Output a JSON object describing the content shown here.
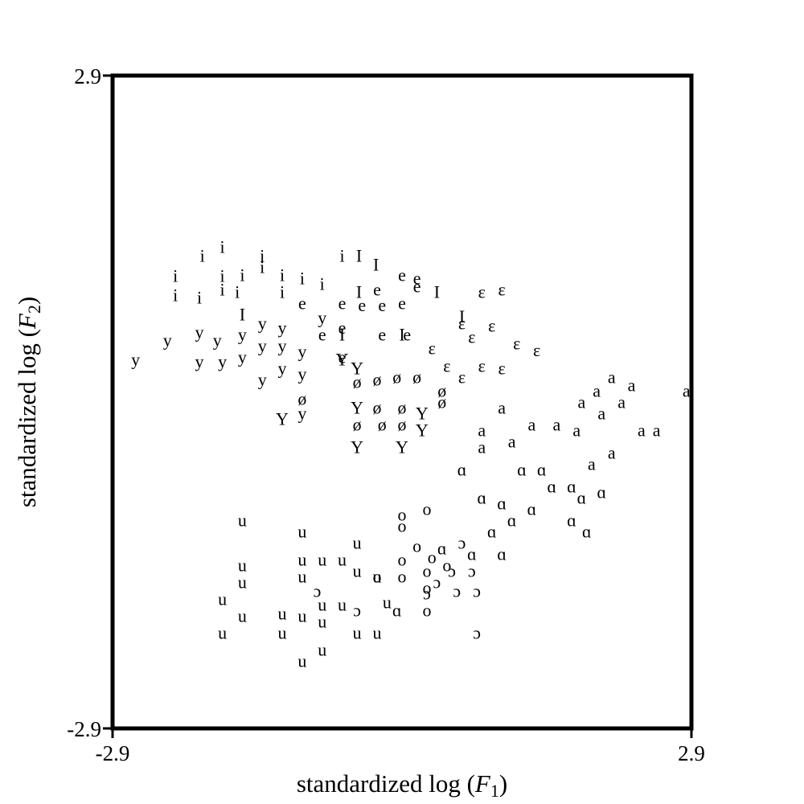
{
  "chart_data": {
    "type": "scatter",
    "xlabel_prefix": "standardized log (",
    "xlabel_var": "F",
    "xlabel_sub": "1",
    "xlabel_suffix": ")",
    "ylabel_prefix": "standardized log (",
    "ylabel_var": "F",
    "ylabel_sub": "2",
    "ylabel_suffix": ")",
    "xlim": [
      -2.9,
      2.9
    ],
    "ylim": [
      -2.9,
      2.9
    ],
    "x_tick_labels": [
      "-2.9",
      "2.9"
    ],
    "y_tick_labels": [
      "2.9",
      "-2.9"
    ],
    "grid": false,
    "points": [
      {
        "label": "i",
        "x": -2.0,
        "y": 1.3
      },
      {
        "label": "i",
        "x": -1.8,
        "y": 1.38
      },
      {
        "label": "i",
        "x": -2.27,
        "y": 1.12
      },
      {
        "label": "i",
        "x": -2.27,
        "y": 0.95
      },
      {
        "label": "i",
        "x": -2.03,
        "y": 0.93
      },
      {
        "label": "i",
        "x": -1.8,
        "y": 1.12
      },
      {
        "label": "i",
        "x": -1.8,
        "y": 1.0
      },
      {
        "label": "i",
        "x": -1.6,
        "y": 1.13
      },
      {
        "label": "i",
        "x": -1.65,
        "y": 0.98
      },
      {
        "label": "i",
        "x": -1.4,
        "y": 1.3
      },
      {
        "label": "i",
        "x": -1.4,
        "y": 1.2
      },
      {
        "label": "i",
        "x": -1.2,
        "y": 1.13
      },
      {
        "label": "i",
        "x": -1.0,
        "y": 1.1
      },
      {
        "label": "i",
        "x": -1.2,
        "y": 0.98
      },
      {
        "label": "i",
        "x": -0.6,
        "y": 1.3
      },
      {
        "label": "i",
        "x": -0.8,
        "y": 1.05
      },
      {
        "label": "I",
        "x": -0.43,
        "y": 1.3
      },
      {
        "label": "I",
        "x": -0.26,
        "y": 1.22
      },
      {
        "label": "I",
        "x": -1.6,
        "y": 0.78
      },
      {
        "label": "I",
        "x": -0.43,
        "y": 0.98
      },
      {
        "label": "I",
        "x": 0.35,
        "y": 0.98
      },
      {
        "label": "I",
        "x": 0.6,
        "y": 0.76
      },
      {
        "label": "I",
        "x": -0.6,
        "y": 0.6
      },
      {
        "label": "I",
        "x": 0.0,
        "y": 0.6
      },
      {
        "label": "e",
        "x": 0.0,
        "y": 1.13
      },
      {
        "label": "e",
        "x": 0.15,
        "y": 1.1
      },
      {
        "label": "e",
        "x": 0.15,
        "y": 1.03
      },
      {
        "label": "e",
        "x": -0.25,
        "y": 1.0
      },
      {
        "label": "e",
        "x": -1.0,
        "y": 0.88
      },
      {
        "label": "e",
        "x": -0.6,
        "y": 0.88
      },
      {
        "label": "e",
        "x": -0.4,
        "y": 0.86
      },
      {
        "label": "e",
        "x": -0.2,
        "y": 0.86
      },
      {
        "label": "e",
        "x": 0.0,
        "y": 0.88
      },
      {
        "label": "e",
        "x": -0.6,
        "y": 0.66
      },
      {
        "label": "e",
        "x": -0.8,
        "y": 0.6
      },
      {
        "label": "e",
        "x": -0.2,
        "y": 0.6
      },
      {
        "label": "e",
        "x": 0.05,
        "y": 0.6
      },
      {
        "label": "e",
        "x": -0.6,
        "y": 0.4
      },
      {
        "label": "ɛ",
        "x": 0.8,
        "y": 0.98
      },
      {
        "label": "ɛ",
        "x": 1.0,
        "y": 1.0
      },
      {
        "label": "ɛ",
        "x": 0.6,
        "y": 0.7
      },
      {
        "label": "ɛ",
        "x": 0.9,
        "y": 0.68
      },
      {
        "label": "ɛ",
        "x": 1.15,
        "y": 0.52
      },
      {
        "label": "ɛ",
        "x": 0.7,
        "y": 0.58
      },
      {
        "label": "ɛ",
        "x": 1.35,
        "y": 0.46
      },
      {
        "label": "ɛ",
        "x": 0.8,
        "y": 0.32
      },
      {
        "label": "ɛ",
        "x": 1.0,
        "y": 0.3
      },
      {
        "label": "ɛ",
        "x": 0.45,
        "y": 0.32
      },
      {
        "label": "ɛ",
        "x": 0.6,
        "y": 0.22
      },
      {
        "label": "ɛ",
        "x": 0.3,
        "y": 0.48
      },
      {
        "label": "y",
        "x": -2.67,
        "y": 0.38
      },
      {
        "label": "y",
        "x": -2.35,
        "y": 0.55
      },
      {
        "label": "y",
        "x": -2.03,
        "y": 0.62
      },
      {
        "label": "y",
        "x": -1.85,
        "y": 0.55
      },
      {
        "label": "y",
        "x": -2.03,
        "y": 0.36
      },
      {
        "label": "y",
        "x": -1.8,
        "y": 0.36
      },
      {
        "label": "y",
        "x": -1.6,
        "y": 0.4
      },
      {
        "label": "y",
        "x": -1.6,
        "y": 0.6
      },
      {
        "label": "y",
        "x": -1.4,
        "y": 0.7
      },
      {
        "label": "y",
        "x": -1.4,
        "y": 0.5
      },
      {
        "label": "y",
        "x": -1.2,
        "y": 0.66
      },
      {
        "label": "y",
        "x": -1.2,
        "y": 0.5
      },
      {
        "label": "y",
        "x": -1.4,
        "y": 0.2
      },
      {
        "label": "y",
        "x": -1.0,
        "y": 0.45
      },
      {
        "label": "y",
        "x": -1.2,
        "y": 0.3
      },
      {
        "label": "y",
        "x": -1.0,
        "y": 0.25
      },
      {
        "label": "y",
        "x": -1.0,
        "y": -0.1
      },
      {
        "label": "y",
        "x": -0.8,
        "y": 0.75
      },
      {
        "label": "Y",
        "x": -0.45,
        "y": 0.3
      },
      {
        "label": "Y",
        "x": -0.6,
        "y": 0.38
      },
      {
        "label": "Y",
        "x": -1.2,
        "y": -0.15
      },
      {
        "label": "Y",
        "x": -0.45,
        "y": -0.05
      },
      {
        "label": "Y",
        "x": -0.45,
        "y": -0.4
      },
      {
        "label": "Y",
        "x": 0.0,
        "y": -0.4
      },
      {
        "label": "Y",
        "x": 0.2,
        "y": -0.1
      },
      {
        "label": "Y",
        "x": 0.2,
        "y": -0.25
      },
      {
        "label": "ø",
        "x": -0.45,
        "y": 0.18
      },
      {
        "label": "ø",
        "x": -0.25,
        "y": 0.2
      },
      {
        "label": "ø",
        "x": -0.05,
        "y": 0.22
      },
      {
        "label": "ø",
        "x": 0.15,
        "y": 0.22
      },
      {
        "label": "ø",
        "x": -1.0,
        "y": 0.03
      },
      {
        "label": "ø",
        "x": -0.25,
        "y": -0.05
      },
      {
        "label": "ø",
        "x": 0.0,
        "y": -0.05
      },
      {
        "label": "ø",
        "x": -0.45,
        "y": -0.2
      },
      {
        "label": "ø",
        "x": -0.2,
        "y": -0.2
      },
      {
        "label": "ø",
        "x": 0.0,
        "y": -0.2
      },
      {
        "label": "ø",
        "x": 0.4,
        "y": 0.1
      },
      {
        "label": "ø",
        "x": 0.4,
        "y": 0.0
      },
      {
        "label": "a",
        "x": 2.85,
        "y": 0.1
      },
      {
        "label": "a",
        "x": 2.1,
        "y": 0.22
      },
      {
        "label": "a",
        "x": 2.3,
        "y": 0.15
      },
      {
        "label": "a",
        "x": 1.95,
        "y": 0.1
      },
      {
        "label": "a",
        "x": 2.2,
        "y": 0.0
      },
      {
        "label": "a",
        "x": 2.0,
        "y": -0.1
      },
      {
        "label": "a",
        "x": 1.8,
        "y": 0.0
      },
      {
        "label": "a",
        "x": 1.55,
        "y": -0.2
      },
      {
        "label": "a",
        "x": 1.3,
        "y": -0.2
      },
      {
        "label": "a",
        "x": 1.0,
        "y": -0.05
      },
      {
        "label": "a",
        "x": 0.8,
        "y": -0.25
      },
      {
        "label": "a",
        "x": 0.8,
        "y": -0.4
      },
      {
        "label": "a",
        "x": 1.1,
        "y": -0.35
      },
      {
        "label": "a",
        "x": 1.75,
        "y": -0.25
      },
      {
        "label": "a",
        "x": 2.4,
        "y": -0.25
      },
      {
        "label": "a",
        "x": 2.55,
        "y": -0.25
      },
      {
        "label": "a",
        "x": 2.1,
        "y": -0.45
      },
      {
        "label": "a",
        "x": 1.9,
        "y": -0.55
      },
      {
        "label": "ɑ",
        "x": 0.6,
        "y": -0.6
      },
      {
        "label": "ɑ",
        "x": 1.2,
        "y": -0.6
      },
      {
        "label": "ɑ",
        "x": 1.4,
        "y": -0.6
      },
      {
        "label": "ɑ",
        "x": 1.7,
        "y": -0.75
      },
      {
        "label": "ɑ",
        "x": 1.5,
        "y": -0.75
      },
      {
        "label": "ɑ",
        "x": 0.8,
        "y": -0.85
      },
      {
        "label": "ɑ",
        "x": 1.0,
        "y": -0.9
      },
      {
        "label": "ɑ",
        "x": 1.8,
        "y": -0.85
      },
      {
        "label": "ɑ",
        "x": 2.0,
        "y": -0.8
      },
      {
        "label": "ɑ",
        "x": 1.3,
        "y": -0.95
      },
      {
        "label": "ɑ",
        "x": 1.1,
        "y": -1.05
      },
      {
        "label": "ɑ",
        "x": 1.7,
        "y": -1.05
      },
      {
        "label": "ɑ",
        "x": 1.85,
        "y": -1.15
      },
      {
        "label": "ɑ",
        "x": 0.9,
        "y": -1.15
      },
      {
        "label": "ɑ",
        "x": 1.0,
        "y": -1.35
      },
      {
        "label": "ɑ",
        "x": 0.7,
        "y": -1.35
      },
      {
        "label": "ɑ",
        "x": -0.05,
        "y": -1.85
      },
      {
        "label": "ɑ",
        "x": 0.4,
        "y": -1.3
      },
      {
        "label": "o",
        "x": 0.0,
        "y": -1.0
      },
      {
        "label": "o",
        "x": 0.0,
        "y": -1.1
      },
      {
        "label": "o",
        "x": 0.25,
        "y": -0.95
      },
      {
        "label": "o",
        "x": 0.15,
        "y": -1.28
      },
      {
        "label": "o",
        "x": 0.3,
        "y": -1.38
      },
      {
        "label": "o",
        "x": 0.0,
        "y": -1.4
      },
      {
        "label": "o",
        "x": 0.25,
        "y": -1.5
      },
      {
        "label": "o",
        "x": 0.45,
        "y": -1.45
      },
      {
        "label": "o",
        "x": 0.0,
        "y": -1.55
      },
      {
        "label": "o",
        "x": 0.25,
        "y": -1.65
      },
      {
        "label": "o",
        "x": -0.25,
        "y": -1.55
      },
      {
        "label": "o",
        "x": 0.25,
        "y": -1.85
      },
      {
        "label": "ɔ",
        "x": 0.6,
        "y": -1.25
      },
      {
        "label": "ɔ",
        "x": 0.5,
        "y": -1.5
      },
      {
        "label": "ɔ",
        "x": 0.7,
        "y": -1.5
      },
      {
        "label": "ɔ",
        "x": 0.25,
        "y": -1.7
      },
      {
        "label": "ɔ",
        "x": 0.55,
        "y": -1.68
      },
      {
        "label": "ɔ",
        "x": 0.75,
        "y": -1.68
      },
      {
        "label": "ɔ",
        "x": -0.85,
        "y": -1.68
      },
      {
        "label": "ɔ",
        "x": -0.45,
        "y": -1.85
      },
      {
        "label": "ɔ",
        "x": 0.75,
        "y": -2.05
      },
      {
        "label": "ɔ",
        "x": 0.35,
        "y": -1.6
      },
      {
        "label": "u",
        "x": -1.6,
        "y": -1.05
      },
      {
        "label": "u",
        "x": -1.0,
        "y": -1.15
      },
      {
        "label": "u",
        "x": -0.45,
        "y": -1.25
      },
      {
        "label": "u",
        "x": -1.6,
        "y": -1.45
      },
      {
        "label": "u",
        "x": -1.6,
        "y": -1.6
      },
      {
        "label": "u",
        "x": -1.8,
        "y": -1.75
      },
      {
        "label": "u",
        "x": -1.8,
        "y": -2.05
      },
      {
        "label": "u",
        "x": -1.6,
        "y": -1.9
      },
      {
        "label": "u",
        "x": -1.2,
        "y": -1.88
      },
      {
        "label": "u",
        "x": -1.0,
        "y": -1.4
      },
      {
        "label": "u",
        "x": -1.0,
        "y": -1.55
      },
      {
        "label": "u",
        "x": -0.8,
        "y": -1.4
      },
      {
        "label": "u",
        "x": -0.6,
        "y": -1.4
      },
      {
        "label": "u",
        "x": -0.8,
        "y": -1.8
      },
      {
        "label": "u",
        "x": -0.6,
        "y": -1.8
      },
      {
        "label": "u",
        "x": -1.0,
        "y": -1.9
      },
      {
        "label": "u",
        "x": -0.8,
        "y": -1.95
      },
      {
        "label": "u",
        "x": -1.0,
        "y": -2.3
      },
      {
        "label": "u",
        "x": -0.8,
        "y": -2.2
      },
      {
        "label": "u",
        "x": -0.45,
        "y": -2.05
      },
      {
        "label": "u",
        "x": -0.25,
        "y": -2.05
      },
      {
        "label": "u",
        "x": -0.45,
        "y": -1.5
      },
      {
        "label": "u",
        "x": -0.25,
        "y": -1.55
      },
      {
        "label": "u",
        "x": -0.15,
        "y": -1.78
      },
      {
        "label": "u",
        "x": -1.2,
        "y": -2.05
      }
    ]
  }
}
